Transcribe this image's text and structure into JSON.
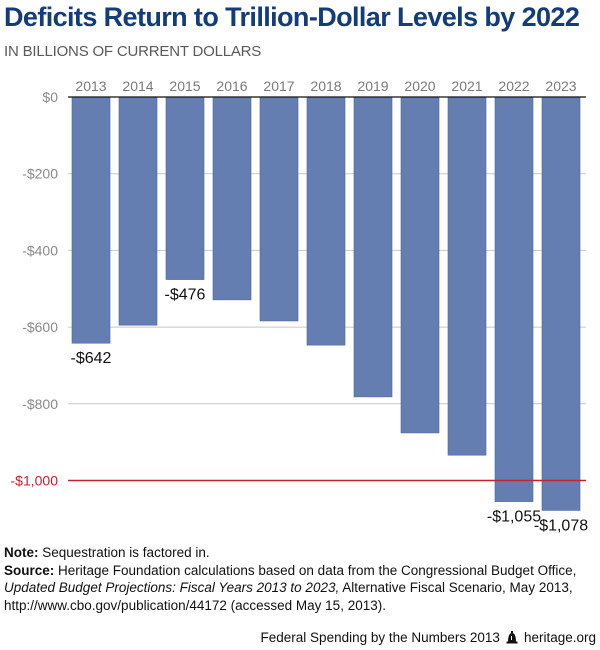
{
  "header": {
    "title": "Deficits Return to Trillion-Dollar Levels by 2022",
    "subtitle": "IN BILLIONS OF CURRENT DOLLARS"
  },
  "chart_data": {
    "type": "bar",
    "title": "Deficits Return to Trillion-Dollar Levels by 2022",
    "subtitle": "IN BILLIONS OF CURRENT DOLLARS",
    "xlabel": "",
    "ylabel": "",
    "categories": [
      "2013",
      "2014",
      "2015",
      "2016",
      "2017",
      "2018",
      "2019",
      "2020",
      "2021",
      "2022",
      "2023"
    ],
    "values": [
      -642,
      -595,
      -476,
      -529,
      -584,
      -647,
      -782,
      -876,
      -934,
      -1055,
      -1078
    ],
    "data_labels": [
      {
        "category": "2013",
        "text": "-$642"
      },
      {
        "category": "2015",
        "text": "-$476"
      },
      {
        "category": "2022",
        "text": "-$1,055"
      },
      {
        "category": "2023",
        "text": "-$1,078"
      }
    ],
    "ylim": [
      -1100,
      0
    ],
    "yticks": [
      0,
      -200,
      -400,
      -600,
      -800,
      -1000
    ],
    "ytick_labels": [
      "$0",
      "-$200",
      "-$400",
      "-$600",
      "-$800",
      "-$1,000"
    ],
    "reference_line": {
      "value": -1000,
      "color": "#c8202f"
    },
    "x_axis_position": "top",
    "grid": true,
    "legend": "none",
    "bar_color": "#5f7ab0"
  },
  "notes": {
    "note_label": "Note:",
    "note_text": " Sequestration is factored in.",
    "source_label": "Source:",
    "source_text_1": " Heritage Foundation calculations based on data from the Congressional Budget Office, ",
    "source_italic": "Updated Budget Projections: Fiscal Years 2013 to 2023,",
    "source_text_2": " Alternative Fiscal Scenario, May 2013, http://www.cbo.gov/publication/44172 (accessed May 15, 2013)."
  },
  "footer": {
    "publication": "Federal Spending by the Numbers 2013",
    "icon": "liberty-bell-icon",
    "site": "heritage.org"
  }
}
